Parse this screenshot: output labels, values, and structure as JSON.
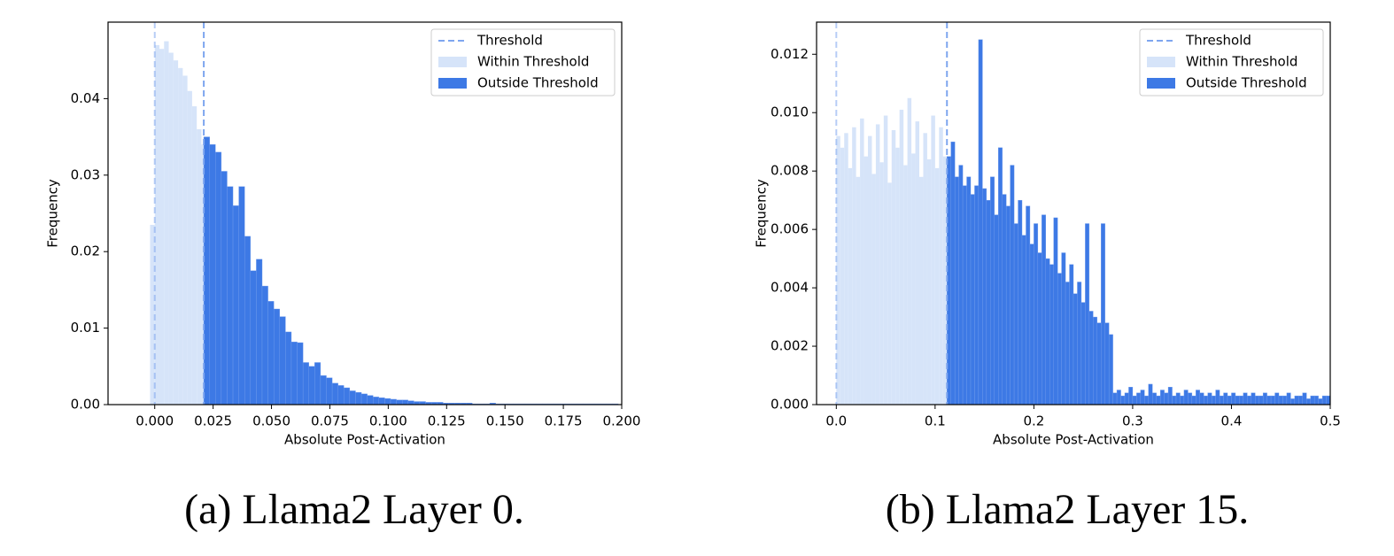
{
  "chart_data": [
    {
      "type": "histogram",
      "caption": "(a) Llama2 Layer 0.",
      "xlabel": "Absolute Post-Activation",
      "ylabel": "Frequency",
      "xlim": [
        -0.02,
        0.2
      ],
      "ylim": [
        0,
        0.05
      ],
      "xticks": [
        {
          "value": 0,
          "label": "0.000"
        },
        0.025,
        {
          "value": 0.05,
          "label": "0.050"
        },
        0.075,
        {
          "value": 0.1,
          "label": "0.100"
        },
        0.125,
        {
          "value": 0.15,
          "label": "0.150"
        },
        0.175,
        {
          "value": 0.2,
          "label": "0.200"
        }
      ],
      "yticks": [
        {
          "value": 0,
          "label": "0.00"
        },
        0.01,
        0.02,
        0.03,
        0.04
      ],
      "legend": "upper right",
      "threshold": {
        "name": "Threshold",
        "color": "#7ea6ef",
        "values": [
          0,
          0.021
        ]
      },
      "series": [
        {
          "name": "Within Threshold",
          "color": "#d6e4f9",
          "bins": [
            -0.002,
            0,
            0.002,
            0.004,
            0.006,
            0.008,
            0.01,
            0.012,
            0.014,
            0.016,
            0.018,
            0.02,
            0.021
          ],
          "values": [
            0.0235,
            0.047,
            0.0465,
            0.0475,
            0.046,
            0.045,
            0.044,
            0.043,
            0.041,
            0.039,
            0.036,
            0.034
          ]
        },
        {
          "name": "Outside Threshold",
          "color": "#3d79e5",
          "bins": [
            0.021,
            0.0235,
            0.026,
            0.0285,
            0.031,
            0.0335,
            0.036,
            0.0385,
            0.041,
            0.0435,
            0.046,
            0.0485,
            0.051,
            0.0535,
            0.056,
            0.0585,
            0.061,
            0.0635,
            0.066,
            0.0685,
            0.071,
            0.0735,
            0.076,
            0.0785,
            0.081,
            0.0835,
            0.086,
            0.0885,
            0.091,
            0.0935,
            0.096,
            0.0985,
            0.101,
            0.1035,
            0.106,
            0.1085,
            0.111,
            0.1135,
            0.116,
            0.1185,
            0.121,
            0.1235,
            0.126,
            0.1285,
            0.131,
            0.1335,
            0.136,
            0.1385,
            0.141,
            0.1435,
            0.146,
            0.1485,
            0.151,
            0.1535,
            0.156,
            0.1585,
            0.161,
            0.1635,
            0.166,
            0.1685,
            0.171,
            0.1735,
            0.176,
            0.1785,
            0.181,
            0.1835,
            0.186,
            0.1885,
            0.191,
            0.1935,
            0.196,
            0.1985
          ],
          "values": [
            0.035,
            0.034,
            0.033,
            0.0305,
            0.0285,
            0.026,
            0.0285,
            0.022,
            0.0175,
            0.019,
            0.0155,
            0.0135,
            0.0125,
            0.0115,
            0.0095,
            0.0082,
            0.0081,
            0.0055,
            0.005,
            0.0055,
            0.0038,
            0.0035,
            0.0028,
            0.0025,
            0.0022,
            0.0018,
            0.0016,
            0.0014,
            0.0012,
            0.001,
            0.0009,
            0.0008,
            0.0007,
            0.0006,
            0.0006,
            0.0005,
            0.0004,
            0.0004,
            0.0003,
            0.0003,
            0.0003,
            0.0002,
            0.0002,
            0.0002,
            0.0002,
            0.0002,
            0.0001,
            0.0001,
            0.0001,
            0.0002,
            0.0001,
            0.0001,
            0.0001,
            0.0001,
            0.0001,
            0.0001,
            0.0001,
            0.0001,
            0.0001,
            0.0001,
            0.0001,
            0.0001,
            0.0001,
            0.0001,
            0.0001,
            0.0001,
            0.0001,
            0.0001,
            0.0001,
            0.0001,
            0.0001
          ]
        }
      ]
    },
    {
      "type": "histogram",
      "caption": "(b) Llama2 Layer 15.",
      "xlabel": "Absolute Post-Activation",
      "ylabel": "Frequency",
      "xlim": [
        -0.02,
        0.5
      ],
      "ylim": [
        0,
        0.0131
      ],
      "xticks": [
        {
          "value": 0,
          "label": "0.0"
        },
        0.1,
        0.2,
        0.3,
        0.4,
        0.5
      ],
      "yticks": [
        {
          "value": 0,
          "label": "0.000"
        },
        0.002,
        0.004,
        0.006,
        0.008,
        {
          "value": 0.01,
          "label": "0.010"
        },
        0.012
      ],
      "legend": "upper right",
      "threshold": {
        "name": "Threshold",
        "color": "#7ea6ef",
        "values": [
          0,
          0.112
        ]
      },
      "series": [
        {
          "name": "Within Threshold",
          "color": "#d6e4f9",
          "bins": [
            0,
            0.004,
            0.008,
            0.012,
            0.016,
            0.02,
            0.024,
            0.028,
            0.032,
            0.036,
            0.04,
            0.044,
            0.048,
            0.052,
            0.056,
            0.06,
            0.064,
            0.068,
            0.072,
            0.076,
            0.08,
            0.084,
            0.088,
            0.092,
            0.096,
            0.1,
            0.104,
            0.108,
            0.112
          ],
          "values": [
            0.0092,
            0.0088,
            0.0093,
            0.0081,
            0.0095,
            0.0078,
            0.0098,
            0.0085,
            0.0092,
            0.0079,
            0.0096,
            0.0083,
            0.0099,
            0.0076,
            0.0094,
            0.0088,
            0.0101,
            0.0082,
            0.0105,
            0.0086,
            0.0097,
            0.0078,
            0.0093,
            0.0084,
            0.0099,
            0.0081,
            0.0095,
            0.0085
          ]
        },
        {
          "name": "Outside Threshold",
          "color": "#3d79e5",
          "bins": [
            0.112,
            0.116,
            0.12,
            0.124,
            0.128,
            0.132,
            0.136,
            0.14,
            0.144,
            0.148,
            0.152,
            0.156,
            0.16,
            0.164,
            0.168,
            0.172,
            0.176,
            0.18,
            0.184,
            0.188,
            0.192,
            0.196,
            0.2,
            0.204,
            0.208,
            0.212,
            0.216,
            0.22,
            0.224,
            0.228,
            0.232,
            0.236,
            0.24,
            0.244,
            0.248,
            0.252,
            0.256,
            0.26,
            0.264,
            0.268,
            0.272,
            0.276,
            0.28,
            0.284,
            0.288,
            0.292,
            0.296,
            0.3,
            0.304,
            0.308,
            0.312,
            0.316,
            0.32,
            0.324,
            0.328,
            0.332,
            0.336,
            0.34,
            0.344,
            0.348,
            0.352,
            0.356,
            0.36,
            0.364,
            0.368,
            0.372,
            0.376,
            0.38,
            0.384,
            0.388,
            0.392,
            0.396,
            0.4,
            0.404,
            0.408,
            0.412,
            0.416,
            0.42,
            0.424,
            0.428,
            0.432,
            0.436,
            0.44,
            0.444,
            0.448,
            0.452,
            0.456,
            0.46,
            0.464,
            0.468,
            0.472,
            0.476,
            0.48,
            0.484,
            0.488,
            0.492,
            0.496,
            0.5
          ],
          "values": [
            0.0085,
            0.009,
            0.0078,
            0.0082,
            0.0075,
            0.0078,
            0.0072,
            0.0075,
            0.0125,
            0.0074,
            0.007,
            0.0078,
            0.0065,
            0.0088,
            0.0072,
            0.0068,
            0.0082,
            0.0062,
            0.007,
            0.0058,
            0.0068,
            0.0055,
            0.0062,
            0.0052,
            0.0065,
            0.005,
            0.0048,
            0.0064,
            0.0045,
            0.0052,
            0.0042,
            0.0048,
            0.0038,
            0.0042,
            0.0035,
            0.0062,
            0.0032,
            0.003,
            0.0028,
            0.0062,
            0.0028,
            0.0024,
            0.0004,
            0.0005,
            0.0003,
            0.0004,
            0.0006,
            0.0003,
            0.0004,
            0.0005,
            0.0003,
            0.0007,
            0.0004,
            0.0003,
            0.0005,
            0.0004,
            0.0006,
            0.0003,
            0.0004,
            0.0003,
            0.0005,
            0.0004,
            0.0003,
            0.0005,
            0.0004,
            0.0003,
            0.0004,
            0.0003,
            0.0005,
            0.0003,
            0.0004,
            0.0003,
            0.0004,
            0.0003,
            0.0003,
            0.0004,
            0.0003,
            0.0004,
            0.0003,
            0.0003,
            0.0004,
            0.0003,
            0.0003,
            0.0004,
            0.0003,
            0.0003,
            0.0004,
            0.0002,
            0.0003,
            0.0003,
            0.0004,
            0.0002,
            0.0003,
            0.0003,
            0.0002,
            0.0003,
            0.0003
          ]
        }
      ]
    }
  ]
}
